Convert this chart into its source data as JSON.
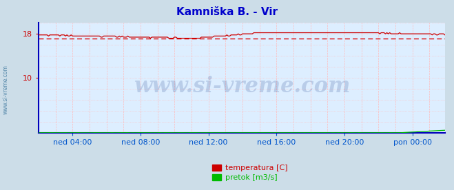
{
  "title": "Kamniška B. - Vir",
  "title_color": "#0000cc",
  "bg_color": "#ccdde8",
  "plot_bg_color": "#ddeeff",
  "ylim": [
    0,
    20
  ],
  "xlim": [
    0,
    287
  ],
  "ytick_vals": [
    10,
    18
  ],
  "ytick_labels": [
    "10",
    "18"
  ],
  "xtick_positions": [
    24,
    72,
    120,
    168,
    216,
    264
  ],
  "xtick_labels": [
    "ned 04:00",
    "ned 08:00",
    "ned 12:00",
    "ned 16:00",
    "ned 20:00",
    "pon 00:00"
  ],
  "avg_line_y": 17.1,
  "avg_line_color": "#dd0000",
  "grid_v_color": "#ffbbbb",
  "grid_h_color": "#ffbbbb",
  "watermark": "www.si-vreme.com",
  "watermark_color": "#1a3a8a",
  "watermark_alpha": 0.18,
  "side_watermark_color": "#5588aa",
  "temp_color": "#cc0000",
  "flow_color": "#00bb00",
  "border_color": "#0000bb",
  "legend": [
    {
      "label": "temperatura [C]",
      "color": "#cc0000"
    },
    {
      "label": "pretok [m3/s]",
      "color": "#00bb00"
    }
  ]
}
